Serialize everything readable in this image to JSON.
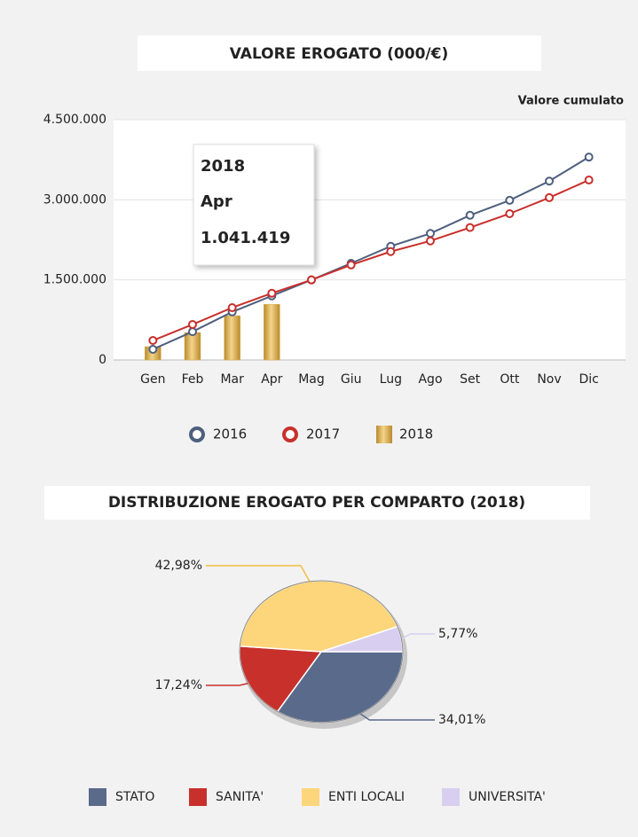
{
  "chart_data": [
    {
      "type": "combo",
      "title": "VALORE EROGATO (000/€)",
      "subtitle": "Valore cumulato",
      "categories": [
        "Gen",
        "Feb",
        "Mar",
        "Apr",
        "Mag",
        "Giu",
        "Lug",
        "Ago",
        "Set",
        "Ott",
        "Nov",
        "Dic"
      ],
      "series": [
        {
          "name": "2016",
          "type": "line",
          "color": "#4e5f7e",
          "values": [
            200000,
            530000,
            900000,
            1200000,
            1500000,
            1810000,
            2130000,
            2370000,
            2710000,
            2990000,
            3350000,
            3800000
          ]
        },
        {
          "name": "2017",
          "type": "line",
          "color": "#c8302c",
          "values": [
            365000,
            665000,
            980000,
            1250000,
            1500000,
            1780000,
            2030000,
            2230000,
            2480000,
            2740000,
            3040000,
            3370000
          ]
        },
        {
          "name": "2018",
          "type": "bar",
          "color": "#d9ac4a",
          "values": [
            250000,
            515000,
            830000,
            1041419,
            null,
            null,
            null,
            null,
            null,
            null,
            null,
            null
          ],
          "value_labels": [
            null,
            null,
            null,
            "1.041.419",
            null,
            null,
            null,
            null,
            null,
            null,
            null,
            null
          ]
        }
      ],
      "ylim": [
        0,
        4500000
      ],
      "yticks": [
        0,
        {
          "value": 1500000,
          "label": "1.500.000"
        },
        {
          "value": 3000000,
          "label": "3.000.000"
        },
        {
          "value": 4500000,
          "label": "4.500.000"
        }
      ],
      "grid": true,
      "legend": "bottom"
    },
    {
      "type": "pie",
      "title": "DISTRIBUZIONE EROGATO PER COMPARTO (2018)",
      "categories": [
        "STATO",
        "SANITA'",
        "ENTI LOCALI",
        "UNIVERSITA'"
      ],
      "values": [
        34.01,
        17.24,
        42.98,
        5.77
      ],
      "value_labels": [
        "34,01%",
        "17,24%",
        "42,98%",
        "5,77%"
      ],
      "colors": [
        "#5a6a8a",
        "#c8302c",
        "#fdd57a",
        "#d8cff0"
      ],
      "legend": "bottom"
    }
  ]
}
